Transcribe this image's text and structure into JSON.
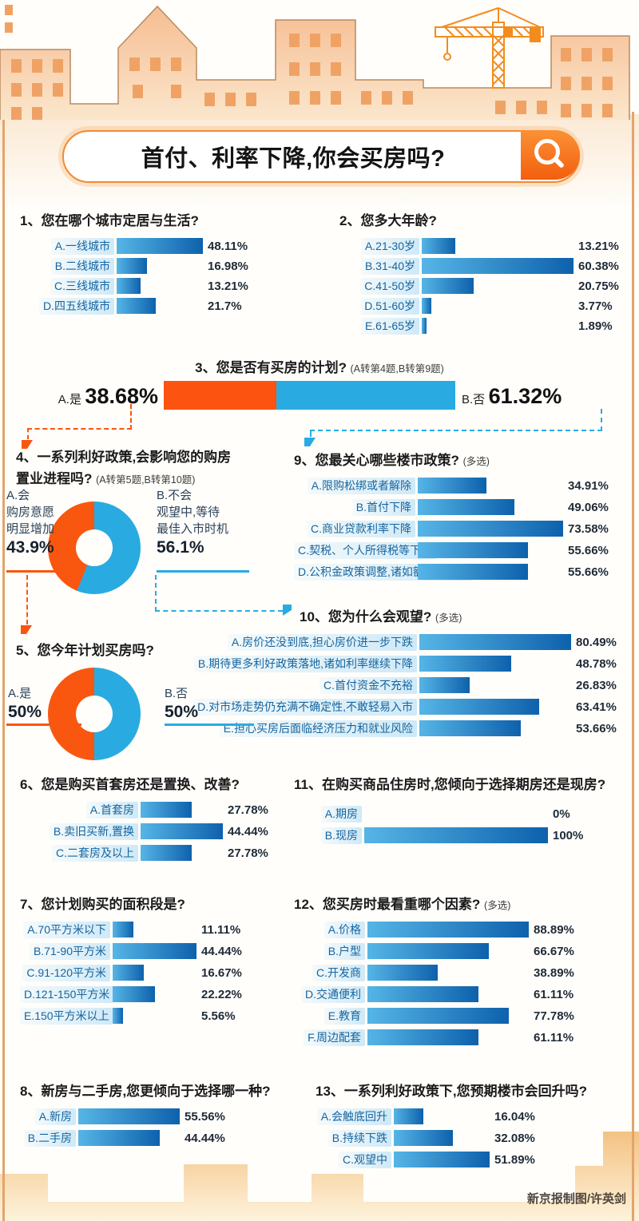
{
  "page": {
    "search_title": "首付、利率下降,你会买房吗?",
    "credit": "新京报制图/许英剑"
  },
  "colors": {
    "accent_orange": "#f9560f",
    "accent_blue": "#29abe2",
    "bar_gradient_start": "#56b5e6",
    "bar_gradient_end": "#0e61ac",
    "label_bg": "#cfe9f7"
  },
  "chart_data": [
    {
      "id": "q1",
      "type": "bar",
      "orientation": "horizontal",
      "unit": "%",
      "title": "1、您在哪个城市定居与生活?",
      "categories": [
        "A.一线城市",
        "B.二线城市",
        "C.三线城市",
        "D.四五线城市"
      ],
      "values": [
        48.11,
        16.98,
        13.21,
        21.7
      ]
    },
    {
      "id": "q2",
      "type": "bar",
      "orientation": "horizontal",
      "unit": "%",
      "title": "2、您多大年龄?",
      "categories": [
        "A.21-30岁",
        "B.31-40岁",
        "C.41-50岁",
        "D.51-60岁",
        "E.61-65岁"
      ],
      "values": [
        13.21,
        60.38,
        20.75,
        3.77,
        1.89
      ]
    },
    {
      "id": "q3",
      "type": "stacked-bar",
      "unit": "%",
      "title": "3、您是否有买房的计划?",
      "note": "(A转第4题,B转第9题)",
      "segments": {
        "a": {
          "label": "A.是",
          "value": 38.68,
          "color": "#fc5310"
        },
        "b": {
          "label": "B.否",
          "value": 61.32,
          "color": "#29abe2"
        }
      }
    },
    {
      "id": "q4",
      "type": "donut",
      "unit": "%",
      "title_line1": "4、一系列利好政策,会影响您的购房",
      "title_line2": "置业进程吗?",
      "note": "(A转第5题,B转第10题)",
      "slices": {
        "a": {
          "label_lines": [
            "A.会",
            "购房意愿",
            "明显增加"
          ],
          "value": 43.9,
          "color": "#f9560f"
        },
        "b": {
          "label_lines": [
            "B.不会",
            "观望中,等待",
            "最佳入市时机"
          ],
          "value": 56.1,
          "color": "#29abe2"
        }
      }
    },
    {
      "id": "q5",
      "type": "donut",
      "unit": "%",
      "title": "5、您今年计划买房吗?",
      "slices": {
        "a": {
          "label_lines": [
            "A.是"
          ],
          "value": 50,
          "color": "#f9560f"
        },
        "b": {
          "label_lines": [
            "B.否"
          ],
          "value": 50,
          "color": "#29abe2"
        }
      }
    },
    {
      "id": "q6",
      "type": "bar",
      "orientation": "horizontal",
      "unit": "%",
      "title": "6、您是购买首套房还是置换、改善?",
      "categories": [
        "A.首套房",
        "B.卖旧买新,置换",
        "C.二套房及以上"
      ],
      "values": [
        27.78,
        44.44,
        27.78
      ]
    },
    {
      "id": "q7",
      "type": "bar",
      "orientation": "horizontal",
      "unit": "%",
      "title": "7、您计划购买的面积段是?",
      "categories": [
        "A.70平方米以下",
        "B.71-90平方米",
        "C.91-120平方米",
        "D.121-150平方米",
        "E.150平方米以上"
      ],
      "values": [
        11.11,
        44.44,
        16.67,
        22.22,
        5.56
      ]
    },
    {
      "id": "q8",
      "type": "bar",
      "orientation": "horizontal",
      "unit": "%",
      "title": "8、新房与二手房,您更倾向于选择哪一种?",
      "categories": [
        "A.新房",
        "B.二手房"
      ],
      "values": [
        55.56,
        44.44
      ]
    },
    {
      "id": "q9",
      "type": "bar",
      "orientation": "horizontal",
      "unit": "%",
      "multi_select": true,
      "title": "9、您最关心哪些楼市政策?",
      "note": "(多选)",
      "categories": [
        "A.限购松绑或者解除",
        "B.首付下降",
        "C.商业贷款利率下降",
        "C.契税、个人所得税等下降",
        "D.公积金政策调整,诸如额度提升等"
      ],
      "values": [
        34.91,
        49.06,
        73.58,
        55.66,
        55.66
      ]
    },
    {
      "id": "q10",
      "type": "bar",
      "orientation": "horizontal",
      "unit": "%",
      "multi_select": true,
      "title": "10、您为什么会观望?",
      "note": "(多选)",
      "categories": [
        "A.房价还没到底,担心房价进一步下跌",
        "B.期待更多利好政策落地,诸如利率继续下降",
        "C.首付资金不充裕",
        "D.对市场走势仍充满不确定性,不敢轻易入市",
        "E.担心买房后面临经济压力和就业风险"
      ],
      "values": [
        80.49,
        48.78,
        26.83,
        63.41,
        53.66
      ]
    },
    {
      "id": "q11",
      "type": "bar",
      "orientation": "horizontal",
      "unit": "%",
      "title": "11、在购买商品住房时,您倾向于选择期房还是现房?",
      "categories": [
        "A.期房",
        "B.现房"
      ],
      "values": [
        0,
        100
      ]
    },
    {
      "id": "q12",
      "type": "bar",
      "orientation": "horizontal",
      "unit": "%",
      "multi_select": true,
      "title": "12、您买房时最看重哪个因素?",
      "note": "(多选)",
      "categories": [
        "A.价格",
        "B.户型",
        "C.开发商",
        "D.交通便利",
        "E.教育",
        "F.周边配套"
      ],
      "values": [
        88.89,
        66.67,
        38.89,
        61.11,
        77.78,
        61.11
      ]
    },
    {
      "id": "q13",
      "type": "bar",
      "orientation": "horizontal",
      "unit": "%",
      "title": "13、一系列利好政策下,您预期楼市会回升吗?",
      "categories": [
        "A.会触底回升",
        "B.持续下跌",
        "C.观望中"
      ],
      "values": [
        16.04,
        32.08,
        51.89
      ]
    }
  ]
}
